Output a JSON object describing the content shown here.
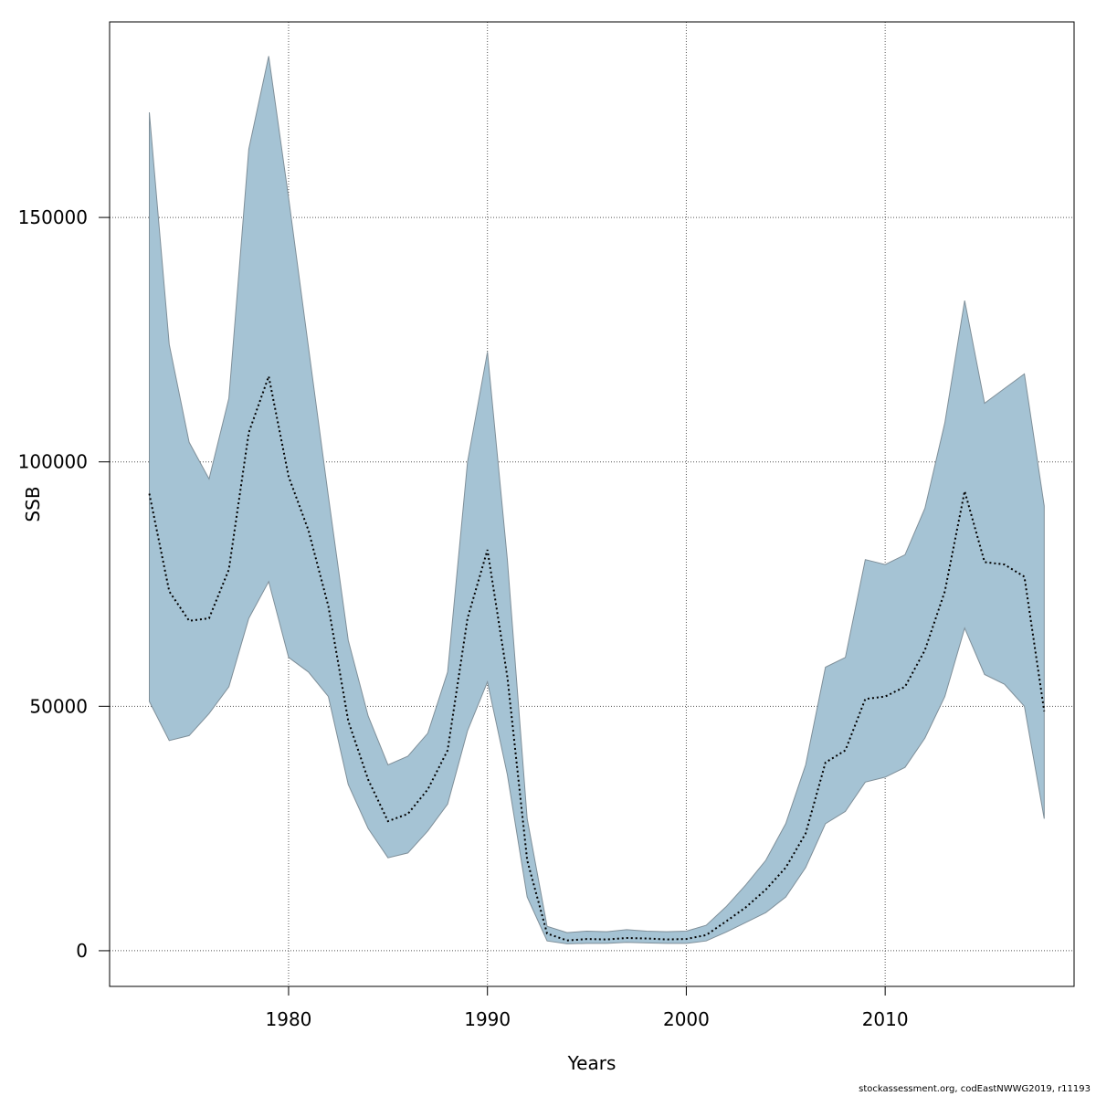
{
  "chart_data": {
    "type": "area",
    "xlabel": "Years",
    "ylabel": "SSB",
    "xlim": [
      1971,
      2019.5
    ],
    "ylim": [
      -7300,
      190000
    ],
    "x_ticks": [
      1980,
      1990,
      2000,
      2010
    ],
    "y_ticks": [
      0,
      50000,
      100000,
      150000
    ],
    "x_tick_labels": [
      "1980",
      "1990",
      "2000",
      "2010"
    ],
    "y_tick_labels": [
      "0",
      "50000",
      "100000",
      "150000"
    ],
    "grid": true,
    "colors": {
      "band": "#a5c3d4",
      "band_edge": "#7f8f99",
      "line": "#000000",
      "grid": "#555555"
    },
    "years": [
      1973,
      1974,
      1975,
      1976,
      1977,
      1978,
      1979,
      1980,
      1981,
      1982,
      1983,
      1984,
      1985,
      1986,
      1987,
      1988,
      1989,
      1990,
      1991,
      1992,
      1993,
      1994,
      1995,
      1996,
      1997,
      1998,
      1999,
      2000,
      2001,
      2002,
      2003,
      2004,
      2005,
      2006,
      2007,
      2008,
      2009,
      2010,
      2011,
      2012,
      2013,
      2014,
      2015,
      2016,
      2017,
      2018
    ],
    "series": [
      {
        "kind": "upper",
        "values": [
          171500,
          124000,
          104000,
          96500,
          113000,
          164000,
          183000,
          154000,
          123500,
          93000,
          63500,
          48000,
          38000,
          39800,
          44500,
          57000,
          100000,
          122500,
          80000,
          27000,
          5000,
          3700,
          4000,
          3900,
          4300,
          4000,
          3900,
          4000,
          5200,
          9000,
          13500,
          18500,
          26000,
          38000,
          58000,
          60000,
          80000,
          79000,
          81000,
          90500,
          108000,
          133000,
          112000,
          115000,
          118000,
          91000
        ]
      },
      {
        "kind": "estimate",
        "values": [
          93500,
          73500,
          67500,
          68000,
          78000,
          106000,
          117500,
          97000,
          86000,
          70500,
          47000,
          35000,
          26500,
          28000,
          33000,
          41000,
          68000,
          82000,
          56000,
          18500,
          3500,
          2100,
          2400,
          2300,
          2600,
          2500,
          2300,
          2400,
          3200,
          6000,
          8900,
          12500,
          17000,
          24000,
          38500,
          41000,
          51500,
          52000,
          54000,
          61500,
          73500,
          94000,
          79500,
          79000,
          76500,
          49000
        ]
      },
      {
        "kind": "lower",
        "values": [
          51000,
          43000,
          44000,
          48500,
          54000,
          68000,
          75500,
          60000,
          57000,
          52000,
          34000,
          25000,
          19000,
          20000,
          24500,
          30000,
          45000,
          55000,
          36000,
          11000,
          2000,
          1400,
          1500,
          1500,
          1700,
          1600,
          1500,
          1500,
          2000,
          3800,
          5800,
          7800,
          11000,
          17000,
          26000,
          28500,
          34500,
          35500,
          37500,
          43500,
          52000,
          66000,
          56500,
          54500,
          50000,
          27000
        ]
      }
    ]
  },
  "footer": "stockassessment.org, codEastNWWG2019, r11193"
}
